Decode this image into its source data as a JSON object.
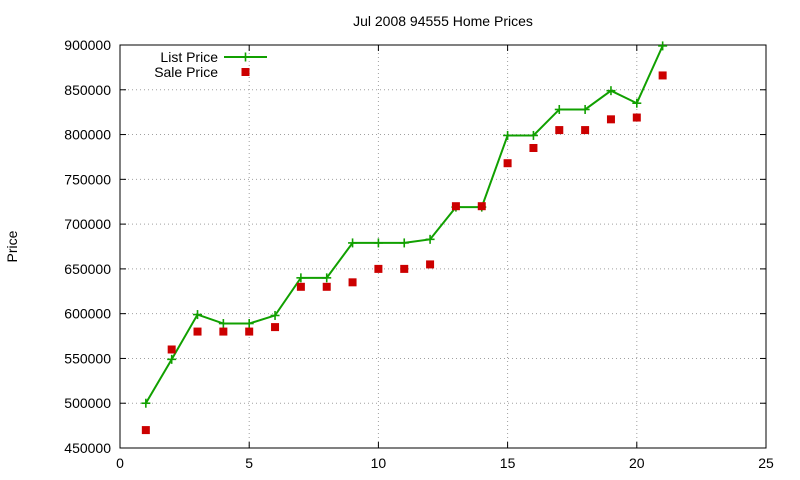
{
  "chart_data": {
    "type": "line",
    "title": "Jul 2008 94555 Home Prices",
    "xlabel": "",
    "ylabel": "Price",
    "xlim": [
      0,
      25
    ],
    "ylim": [
      450000,
      900000
    ],
    "xticks": [
      0,
      5,
      10,
      15,
      20,
      25
    ],
    "yticks": [
      450000,
      500000,
      550000,
      600000,
      650000,
      700000,
      750000,
      800000,
      850000,
      900000
    ],
    "grid": true,
    "legend": "top-left",
    "series": [
      {
        "name": "List Price",
        "style": "line-with-plus-markers",
        "color": "#11a000",
        "x": [
          1,
          2,
          3,
          4,
          5,
          6,
          7,
          8,
          9,
          10,
          11,
          12,
          13,
          14,
          15,
          16,
          17,
          18,
          19,
          20,
          21
        ],
        "y": [
          500000,
          549000,
          599000,
          589000,
          589000,
          598000,
          640000,
          640000,
          679000,
          679000,
          679000,
          683000,
          719000,
          719000,
          799000,
          799000,
          828000,
          828000,
          849000,
          835000,
          899000
        ]
      },
      {
        "name": "Sale Price",
        "style": "square-markers",
        "color": "#cc0000",
        "x": [
          1,
          2,
          3,
          4,
          5,
          6,
          7,
          8,
          9,
          10,
          11,
          12,
          13,
          14,
          15,
          16,
          17,
          18,
          19,
          20,
          21
        ],
        "y": [
          470000,
          560000,
          580000,
          580000,
          580000,
          585000,
          630000,
          630000,
          635000,
          650000,
          650000,
          655000,
          720000,
          720000,
          768000,
          785000,
          805000,
          805000,
          817000,
          819000,
          866000
        ]
      }
    ]
  }
}
